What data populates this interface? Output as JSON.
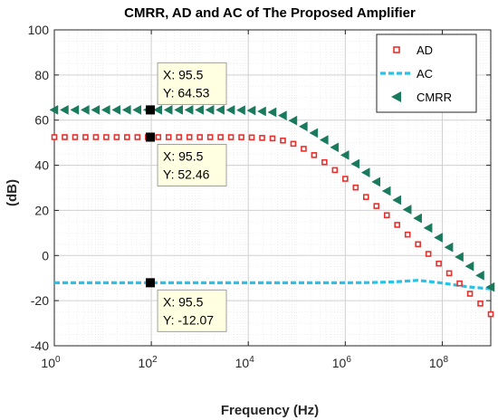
{
  "chart_data": {
    "type": "line",
    "title": "CMRR, AD and AC of The Proposed Amplifier",
    "xlabel": "Frequency (Hz)",
    "ylabel": "(dB)",
    "xscale": "log",
    "xlim": [
      1,
      1000000000
    ],
    "ylim": [
      -40,
      100
    ],
    "grid": true,
    "legend_position": "top-right",
    "x_ticks": [
      {
        "base": "10",
        "exp": "0"
      },
      {
        "base": "10",
        "exp": "2"
      },
      {
        "base": "10",
        "exp": "4"
      },
      {
        "base": "10",
        "exp": "6"
      },
      {
        "base": "10",
        "exp": "8"
      }
    ],
    "y_ticks": [
      "-40",
      "-20",
      "0",
      "20",
      "40",
      "60",
      "80",
      "100"
    ],
    "series": [
      {
        "name": "AD",
        "color": "#e8302c",
        "marker": "square",
        "x": [
          1,
          3.16,
          10,
          31.6,
          100,
          316,
          1000,
          3162,
          10000,
          31623,
          56234,
          100000,
          177828,
          316228,
          562341,
          1000000,
          1778279,
          3162278,
          5623413,
          10000000,
          17782794,
          31622777,
          56234133,
          100000000,
          177827941,
          316227766,
          562341325,
          1000000000
        ],
        "values": [
          52.46,
          52.46,
          52.46,
          52.46,
          52.46,
          52.46,
          52.46,
          52.46,
          52.4,
          51.9,
          50.8,
          49.0,
          46.0,
          42.5,
          38.5,
          34.0,
          29.5,
          24.5,
          20.0,
          15.0,
          10.0,
          5.0,
          0.0,
          -5.0,
          -10.0,
          -15.5,
          -20.5,
          -26.0
        ]
      },
      {
        "name": "AC",
        "color": "#27c2e8",
        "marker": "dash",
        "x": [
          1,
          10,
          100,
          1000,
          10000,
          100000,
          1000000,
          3162278,
          10000000,
          31622777,
          100000000,
          316227766,
          1000000000
        ],
        "values": [
          -12.07,
          -12.07,
          -12.07,
          -12.07,
          -12.07,
          -12.07,
          -12.07,
          -12.0,
          -11.7,
          -11.0,
          -12.2,
          -13.8,
          -14.8
        ]
      },
      {
        "name": "CMRR",
        "color": "#1a7a5e",
        "marker": "triangle-left",
        "x": [
          1,
          3.16,
          10,
          31.6,
          100,
          316,
          1000,
          3162,
          10000,
          31623,
          56234,
          100000,
          177828,
          316228,
          562341,
          1000000,
          1778279,
          3162278,
          5623413,
          10000000,
          17782794,
          31622777,
          56234133,
          100000000,
          177827941,
          316227766,
          562341325,
          1000000000
        ],
        "values": [
          64.53,
          64.53,
          64.53,
          64.53,
          64.53,
          64.53,
          64.53,
          64.53,
          64.4,
          63.5,
          61.8,
          59.0,
          55.8,
          52.3,
          48.5,
          44.5,
          40.0,
          35.5,
          30.5,
          26.0,
          21.0,
          16.5,
          11.5,
          6.5,
          1.5,
          -3.5,
          -8.0,
          -14.0
        ]
      }
    ],
    "datatips": [
      {
        "x": 95.5,
        "y": 64.53,
        "x_text": "X: 95.5",
        "y_text": "Y: 64.53",
        "box": "above"
      },
      {
        "x": 95.5,
        "y": 52.46,
        "x_text": "X: 95.5",
        "y_text": "Y: 52.46",
        "box": "below"
      },
      {
        "x": 95.5,
        "y": -12.07,
        "x_text": "X: 95.5",
        "y_text": "Y: -12.07",
        "box": "below"
      }
    ]
  }
}
